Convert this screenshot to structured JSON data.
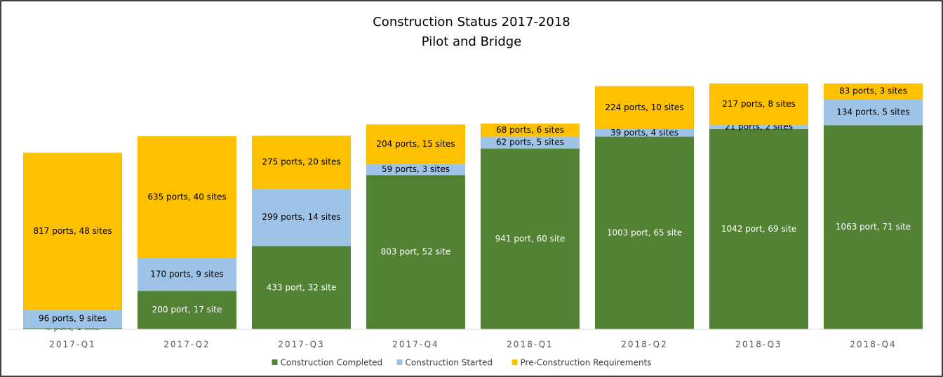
{
  "chart_data": {
    "type": "stacked_bar",
    "title": "Construction Status 2017-2018",
    "subtitle": "Pilot and Bridge",
    "categories": [
      "2017-Q1",
      "2017-Q2",
      "2017-Q3",
      "2017-Q4",
      "2018-Q1",
      "2018-Q2",
      "2018-Q3",
      "2018-Q4"
    ],
    "ylim": [
      0,
      1400
    ],
    "legend": "bottom",
    "series": [
      {
        "name": "Construction Completed",
        "color": "#548235",
        "label_color": "#ffffff",
        "values": [
          6,
          200,
          433,
          803,
          941,
          1003,
          1042,
          1063
        ],
        "value_labels": [
          "6 port, 1 site",
          "200 port, 17 site",
          "433 port, 32 site",
          "803 port, 52 site",
          "941 port, 60 site",
          "1003 port, 65 site",
          "1042 port, 69 site",
          "1063 port, 71 site"
        ]
      },
      {
        "name": "Construction Started",
        "color": "#9dc3e6",
        "label_color": "#000000",
        "values": [
          96,
          170,
          299,
          59,
          62,
          39,
          21,
          134
        ],
        "value_labels": [
          "96 ports, 9 sites",
          "170 ports, 9 sites",
          "299 ports, 14 sites",
          "59 ports, 3 sites",
          "62 ports, 5 sites",
          "39 ports, 4 sites",
          "21 ports, 2 sites",
          "134 ports, 5 sites"
        ]
      },
      {
        "name": "Pre-Construction Requirements",
        "color": "#ffc000",
        "label_color": "#000000",
        "values": [
          817,
          635,
          275,
          204,
          68,
          224,
          217,
          83
        ],
        "value_labels": [
          "817 ports, 48 sites",
          "635 ports, 40 sites",
          "275 ports, 20 sites",
          "204 ports, 15 sites",
          "68 ports, 6 sites",
          "224 ports, 10 sites",
          "217 ports, 8 sites",
          "83 ports, 3 sites"
        ]
      }
    ]
  }
}
